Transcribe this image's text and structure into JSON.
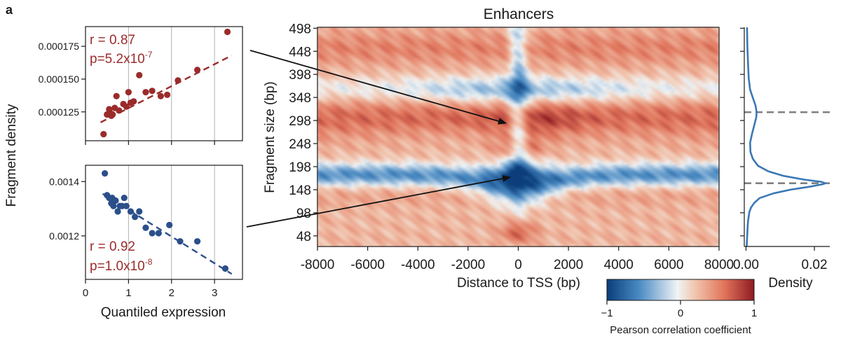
{
  "panel_label": "a",
  "chart_data": [
    {
      "id": "top_scatter",
      "type": "scatter",
      "color": "#9b2b2b",
      "x": [
        0.42,
        0.5,
        0.55,
        0.58,
        0.6,
        0.63,
        0.68,
        0.72,
        0.78,
        0.88,
        0.95,
        1.0,
        1.05,
        1.12,
        1.25,
        1.4,
        1.55,
        1.75,
        1.9,
        2.15,
        2.6,
        3.3
      ],
      "y": [
        0.000108,
        0.000123,
        0.000127,
        0.000124,
        0.000122,
        0.000123,
        0.000128,
        0.000137,
        0.000126,
        0.000131,
        0.000129,
        0.00014,
        0.000132,
        0.000133,
        0.000153,
        0.00014,
        0.000141,
        0.000137,
        0.000138,
        0.000149,
        0.000157,
        0.000186
      ],
      "fit": [
        [
          0.35,
          0.000117
        ],
        [
          3.4,
          0.000168
        ]
      ],
      "annotation_r": "r = 0.87",
      "annotation_p_base": "p=5.2x10",
      "annotation_p_exp": "-7",
      "xlim": [
        0,
        3.65
      ],
      "ylim": [
        0.000103,
        0.00019
      ],
      "yticks": [
        0.000125,
        0.00015,
        0.000175
      ],
      "ytick_labels": [
        "0.000125",
        "0.000150",
        "0.000175"
      ],
      "xgrid": [
        1,
        2,
        3
      ]
    },
    {
      "id": "bottom_scatter",
      "type": "scatter",
      "color": "#2b4f8a",
      "x": [
        0.45,
        0.5,
        0.55,
        0.6,
        0.62,
        0.65,
        0.7,
        0.75,
        0.8,
        0.85,
        0.9,
        0.95,
        1.05,
        1.15,
        1.25,
        1.4,
        1.55,
        1.7,
        1.95,
        2.2,
        2.6,
        3.25
      ],
      "y": [
        0.00143,
        0.00135,
        0.00134,
        0.00132,
        0.00134,
        0.00131,
        0.00133,
        0.00129,
        0.00131,
        0.00131,
        0.00134,
        0.00131,
        0.00129,
        0.00127,
        0.00129,
        0.00123,
        0.00121,
        0.00121,
        0.00124,
        0.00118,
        0.00118,
        0.00108
      ],
      "fit": [
        [
          0.4,
          0.001355
        ],
        [
          3.4,
          0.00106
        ]
      ],
      "annotation_r": "r = 0.92",
      "annotation_p_base": "p=1.0x10",
      "annotation_p_exp": "-8",
      "xlim": [
        0,
        3.65
      ],
      "ylim": [
        0.00104,
        0.00146
      ],
      "yticks": [
        0.0012,
        0.0014
      ],
      "ytick_labels": [
        "0.0012",
        "0.0014"
      ],
      "xgrid": [
        1,
        2,
        3
      ]
    },
    {
      "id": "heatmap",
      "type": "heatmap",
      "title": "Enhancers",
      "xlabel": "Distance to TSS (bp)",
      "ylabel": "Fragment size (bp)",
      "xlim": [
        -8000,
        8000
      ],
      "ylim": [
        25,
        500
      ],
      "xticks": [
        -8000,
        -6000,
        -4000,
        -2000,
        0,
        2000,
        4000,
        6000,
        8000
      ],
      "xtick_labels": [
        "-8000",
        "-6000",
        "-4000",
        "-2000",
        "0",
        "2000",
        "4000",
        "6000",
        "8000"
      ],
      "yticks": [
        48,
        98,
        148,
        198,
        248,
        298,
        348,
        398,
        448,
        498
      ],
      "ytick_labels": [
        "48",
        "98",
        "148",
        "198",
        "248",
        "298",
        "348",
        "398",
        "448",
        "498"
      ],
      "colorbar": {
        "range": [
          -1,
          1
        ],
        "ticks": [
          -1,
          0,
          1
        ],
        "tick_labels": [
          "−1",
          "0",
          "1"
        ],
        "label": "Pearson correlation coefficient",
        "colors": [
          "#0a3d7a",
          "#4a8bc4",
          "#f0f4f6",
          "#f2c4ad",
          "#e0735a",
          "#8f1a22"
        ]
      }
    },
    {
      "id": "density",
      "type": "line",
      "xlabel": "Density",
      "xlim": [
        -0.0005,
        0.0245
      ],
      "ylim": [
        25,
        500
      ],
      "xticks": [
        0,
        0.02
      ],
      "xtick_labels": [
        "0.00",
        "0.02"
      ],
      "yticks": [
        48,
        98,
        148,
        198,
        248,
        298,
        348,
        398,
        448,
        498
      ],
      "hlines": [
        162,
        316
      ],
      "color": "#3a78b5",
      "fragment_sizes": [
        25,
        40,
        55,
        70,
        80,
        90,
        100,
        110,
        120,
        130,
        140,
        148,
        155,
        160,
        162,
        165,
        170,
        178,
        188,
        200,
        215,
        230,
        250,
        270,
        290,
        305,
        316,
        330,
        345,
        365,
        390,
        420,
        460,
        500
      ],
      "density_values": [
        0.0002,
        0.0003,
        0.0004,
        0.0005,
        0.0006,
        0.0008,
        0.001,
        0.0015,
        0.0025,
        0.004,
        0.008,
        0.013,
        0.019,
        0.0225,
        0.0232,
        0.022,
        0.017,
        0.011,
        0.0065,
        0.0035,
        0.002,
        0.0013,
        0.0012,
        0.0018,
        0.0025,
        0.003,
        0.0031,
        0.0028,
        0.0021,
        0.0012,
        0.0008,
        0.0006,
        0.0004,
        0.0003
      ]
    }
  ],
  "shared_labels": {
    "scatter_ylabel": "Fragment density",
    "scatter_xlabel": "Quantiled expression",
    "scatter_xticks": [
      0,
      1,
      2,
      3
    ],
    "scatter_xtick_labels": [
      "0",
      "1",
      "2",
      "3"
    ]
  }
}
